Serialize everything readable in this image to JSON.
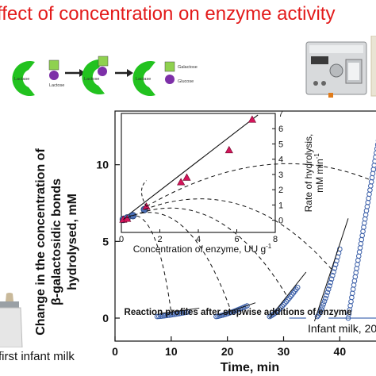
{
  "title": "ffect of concentration on enzyme activity",
  "scheme": {
    "labels": {
      "lactase1": "Lactase",
      "lactose": "Lactose",
      "lactose2": "Lactose",
      "lactase3": "Lactase",
      "galactose": "Galactose",
      "glucose": "Glucose"
    },
    "colors": {
      "enzyme": "#22c21f",
      "galactose": "#8fd14f",
      "glucose": "#7d2fa8",
      "arrow": "#222222"
    }
  },
  "bottle_label": "first infant milk",
  "chart_data": [
    {
      "type": "scatter",
      "name": "main",
      "xlabel": "Time, min",
      "ylabel_lines": [
        "Change in the concentration of",
        "β-galactosidic bonds",
        "hydrolysed, mM"
      ],
      "xlim": [
        0,
        48
      ],
      "ylim": [
        -1.5,
        13.5
      ],
      "xticks": [
        0,
        10,
        20,
        30,
        40
      ],
      "yticks": [
        0,
        5,
        10
      ],
      "annotation": "Reaction profiles after stepwise additions of enzyme",
      "footer": "Infant milk, 20",
      "segments": [
        {
          "x0": 7.5,
          "x1": 13.0,
          "y0": 0.1,
          "y1": 0.4
        },
        {
          "x0": 18.0,
          "x1": 23.5,
          "y0": 0.1,
          "y1": 0.8
        },
        {
          "x0": 27.5,
          "x1": 32.5,
          "y0": 0.1,
          "y1": 2.0
        },
        {
          "x0": 36.0,
          "x1": 40.0,
          "y0": 0.1,
          "y1": 4.5
        },
        {
          "x0": 41.5,
          "x1": 48.0,
          "y0": 0.0,
          "y1": 14.0
        }
      ],
      "fitted_lines": [
        {
          "x0": 8.0,
          "x1": 15.0,
          "y0": 0.3,
          "y1": 0.65
        },
        {
          "x0": 18.5,
          "x1": 25.0,
          "y0": 0.2,
          "y1": 1.0
        },
        {
          "x0": 27.5,
          "x1": 34.0,
          "y0": 0.0,
          "y1": 3.0
        },
        {
          "x0": 35.5,
          "x1": 41.5,
          "y0": -0.2,
          "y1": 6.5
        }
      ],
      "baselines": [
        {
          "x0": 31.0,
          "x1": 34.0,
          "y": 0.0
        },
        {
          "x0": 38.0,
          "x1": 41.5,
          "y": 0.0
        },
        {
          "x0": 41.5,
          "x1": 48.0,
          "y": 0.0
        }
      ]
    },
    {
      "type": "scatter",
      "name": "inset",
      "xlabel": "Concentration of enzyme, UU g",
      "xlabel_sup": "-1",
      "ylabel": "Rate of hydrolysis, mM min",
      "ylabel_sup": "-1",
      "xlim": [
        0,
        8
      ],
      "ylim": [
        -0.8,
        7
      ],
      "xticks": [
        0,
        2,
        4,
        6,
        8
      ],
      "yticks": [
        0,
        1,
        2,
        3,
        4,
        5,
        6,
        7
      ],
      "series": [
        {
          "marker": "circle",
          "color": "#4a6fb5",
          "points": [
            [
              0.1,
              0.05
            ],
            [
              0.3,
              0.15
            ],
            [
              0.6,
              0.3
            ],
            [
              1.2,
              0.7
            ]
          ]
        },
        {
          "marker": "triangle",
          "color": "#d4145a",
          "points": [
            [
              0.1,
              0.05
            ],
            [
              0.3,
              0.1
            ],
            [
              1.3,
              0.9
            ],
            [
              3.1,
              2.5
            ],
            [
              3.4,
              2.8
            ],
            [
              5.6,
              4.6
            ],
            [
              6.8,
              6.6
            ]
          ]
        }
      ],
      "fit_line": {
        "x0": 0,
        "y0": 0,
        "x1": 7.1,
        "y1": 6.9
      }
    }
  ]
}
